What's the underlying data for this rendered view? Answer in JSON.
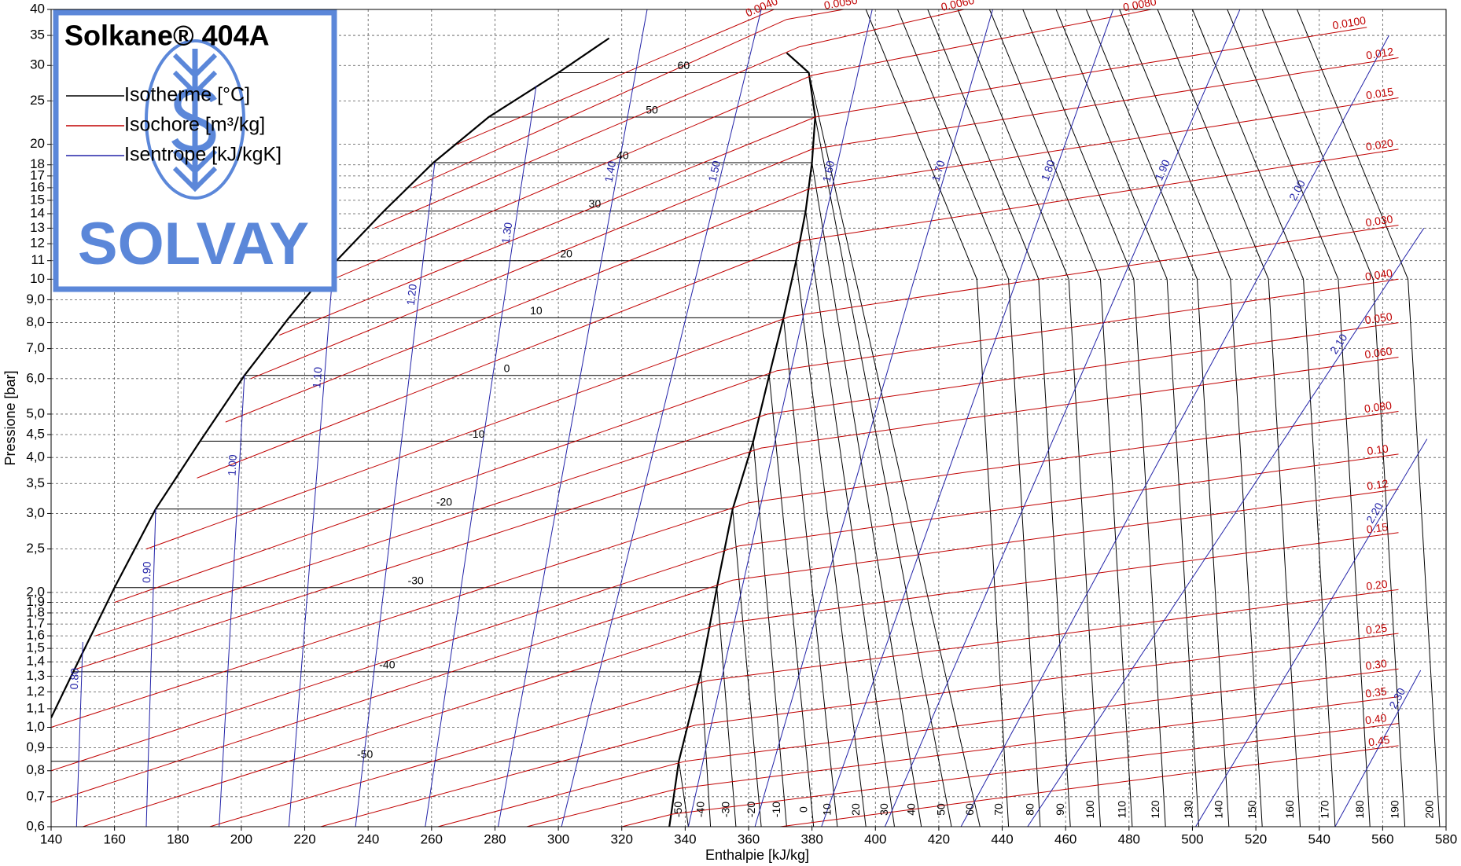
{
  "chart_data": {
    "type": "line",
    "title": "Solkane® 404A",
    "brand": "SOLVAY",
    "x_label": "Enthalpie [kJ/kg]",
    "y_label": "Pressione [bar]",
    "xlim": [
      140,
      580
    ],
    "ylim": [
      0.6,
      40
    ],
    "log_y": true,
    "grid": true,
    "xticks": [
      140,
      160,
      180,
      200,
      220,
      240,
      260,
      280,
      300,
      320,
      340,
      360,
      380,
      400,
      420,
      440,
      460,
      480,
      500,
      520,
      540,
      560,
      580
    ],
    "yticks": [
      {
        "value": 0.6,
        "label": "0,6"
      },
      {
        "value": 0.7,
        "label": "0,7"
      },
      {
        "value": 0.8,
        "label": "0,8"
      },
      {
        "value": 0.9,
        "label": "0,9"
      },
      {
        "value": 1.0,
        "label": "1,0"
      },
      {
        "value": 1.1,
        "label": "1,1"
      },
      {
        "value": 1.2,
        "label": "1,2"
      },
      {
        "value": 1.3,
        "label": "1,3"
      },
      {
        "value": 1.4,
        "label": "1,4"
      },
      {
        "value": 1.5,
        "label": "1,5"
      },
      {
        "value": 1.6,
        "label": "1,6"
      },
      {
        "value": 1.7,
        "label": "1,7"
      },
      {
        "value": 1.8,
        "label": "1,8"
      },
      {
        "value": 1.9,
        "label": "1,9"
      },
      {
        "value": 2.0,
        "label": "2,0"
      },
      {
        "value": 2.5,
        "label": "2,5"
      },
      {
        "value": 3.0,
        "label": "3,0"
      },
      {
        "value": 3.5,
        "label": "3,5"
      },
      {
        "value": 4.0,
        "label": "4,0"
      },
      {
        "value": 4.5,
        "label": "4,5"
      },
      {
        "value": 5.0,
        "label": "5,0"
      },
      {
        "value": 6.0,
        "label": "6,0"
      },
      {
        "value": 7.0,
        "label": "7,0"
      },
      {
        "value": 8.0,
        "label": "8,0"
      },
      {
        "value": 9.0,
        "label": "9,0"
      },
      10,
      11,
      12,
      13,
      14,
      15,
      16,
      17,
      18,
      20,
      25,
      30,
      35,
      40
    ],
    "saturation": {
      "color": "#000000",
      "liquid": {
        "x": [
          140,
          147,
          160,
          173,
          187,
          201,
          215,
          230,
          245,
          260.6,
          278,
          300,
          316
        ],
        "y": [
          1.05,
          1.33,
          2.05,
          3.07,
          4.35,
          6.1,
          8.2,
          11.0,
          14.2,
          18.2,
          23.0,
          28.9,
          34.5
        ]
      },
      "vapor": {
        "x": [
          335,
          338,
          345,
          350,
          355,
          361.5,
          366.5,
          371,
          375,
          378,
          380,
          381,
          379,
          372
        ],
        "y": [
          0.6,
          0.84,
          1.33,
          2.05,
          3.07,
          4.35,
          6.1,
          8.2,
          11.0,
          14.2,
          18.2,
          23.0,
          28.9,
          32
        ]
      }
    },
    "series": [
      {
        "name": "Isotherme [°C]",
        "color": "#000000",
        "lines": [
          {
            "label": "-50",
            "x": [
              140,
              338,
              341
            ],
            "y": [
              0.84,
              0.84,
              0.6
            ]
          },
          {
            "label": "-40",
            "x": [
              147,
              345,
              348
            ],
            "y": [
              1.33,
              1.33,
              0.6
            ]
          },
          {
            "label": "-30",
            "x": [
              160,
              350,
              356
            ],
            "y": [
              2.05,
              2.05,
              0.6
            ]
          },
          {
            "label": "-20",
            "x": [
              173,
              355,
              364
            ],
            "y": [
              3.07,
              3.07,
              0.6
            ]
          },
          {
            "label": "-10",
            "x": [
              187,
              361.5,
              372
            ],
            "y": [
              4.35,
              4.35,
              0.6
            ]
          },
          {
            "label": "0",
            "x": [
              201,
              366.5,
              380.5
            ],
            "y": [
              6.1,
              6.1,
              0.6
            ]
          },
          {
            "label": "10",
            "x": [
              215,
              371,
              388
            ],
            "y": [
              8.2,
              8.2,
              0.6
            ]
          },
          {
            "label": "20",
            "x": [
              230,
              375,
              397
            ],
            "y": [
              11.0,
              11.0,
              0.6
            ]
          },
          {
            "label": "30",
            "x": [
              245,
              378,
              406
            ],
            "y": [
              14.2,
              14.2,
              0.6
            ]
          },
          {
            "label": "40",
            "x": [
              260.6,
              380,
              414.5
            ],
            "y": [
              18.2,
              18.2,
              0.6
            ]
          },
          {
            "label": "50",
            "x": [
              278,
              381,
              424
            ],
            "y": [
              23.0,
              23.0,
              0.6
            ]
          },
          {
            "label": "60",
            "x": [
              300,
              379,
              433
            ],
            "y": [
              28.9,
              28.9,
              0.6
            ]
          },
          {
            "label": "70",
            "x": [
              397,
              432,
              442
            ],
            "y": [
              40,
              10,
              0.6
            ]
          },
          {
            "label": "80",
            "x": [
              407,
              442,
              452
            ],
            "y": [
              40,
              10,
              0.6
            ]
          },
          {
            "label": "90",
            "x": [
              416.5,
              451.5,
              461.5
            ],
            "y": [
              40,
              10,
              0.6
            ]
          },
          {
            "label": "100",
            "x": [
              426,
              461,
              471
            ],
            "y": [
              40,
              10,
              0.6
            ]
          },
          {
            "label": "110",
            "x": [
              436,
              471,
              481
            ],
            "y": [
              40,
              10,
              0.6
            ]
          },
          {
            "label": "120",
            "x": [
              446.5,
              481.5,
              491.5
            ],
            "y": [
              40,
              10,
              0.6
            ]
          },
          {
            "label": "130",
            "x": [
              457,
              492,
              502
            ],
            "y": [
              40,
              10,
              0.6
            ]
          },
          {
            "label": "140",
            "x": [
              466.5,
              501.5,
              511.5
            ],
            "y": [
              40,
              10,
              0.6
            ]
          },
          {
            "label": "150",
            "x": [
              477,
              512,
              522
            ],
            "y": [
              40,
              10,
              0.6
            ]
          },
          {
            "label": "160",
            "x": [
              489,
              524,
              534
            ],
            "y": [
              40,
              10,
              0.6
            ]
          },
          {
            "label": "170",
            "x": [
              500,
              535,
              545
            ],
            "y": [
              40,
              10,
              0.6
            ]
          },
          {
            "label": "180",
            "x": [
              511,
              546,
              556
            ],
            "y": [
              40,
              10,
              0.6
            ]
          },
          {
            "label": "190",
            "x": [
              522,
              557,
              567
            ],
            "y": [
              40,
              10,
              0.6
            ]
          },
          {
            "label": "200",
            "x": [
              533,
              568,
              578
            ],
            "y": [
              40,
              10,
              0.6
            ]
          }
        ]
      },
      {
        "name": "Isochore [m³/kg]",
        "color": "#c00000",
        "lines": [
          {
            "label": "0.0040",
            "x": [
              268,
              368
            ],
            "y": [
              20,
              40
            ]
          },
          {
            "label": "0.0050",
            "x": [
              254,
              372,
              390
            ],
            "y": [
              16,
              38,
              40
            ]
          },
          {
            "label": "0.0060",
            "x": [
              242,
              376,
              428
            ],
            "y": [
              13,
              33,
              40
            ]
          },
          {
            "label": "0.0080",
            "x": [
              226,
              380,
              487
            ],
            "y": [
              9.8,
              28.5,
              40
            ]
          },
          {
            "label": "0.0100",
            "x": [
              212,
              381,
              555
            ],
            "y": [
              7.5,
              23,
              36.5
            ]
          },
          {
            "label": "0.012",
            "x": [
              203,
              380,
              565
            ],
            "y": [
              6.0,
              19.5,
              31.2
            ]
          },
          {
            "label": "0.015",
            "x": [
              195,
              379,
              565
            ],
            "y": [
              4.8,
              15.9,
              25.4
            ]
          },
          {
            "label": "0.020",
            "x": [
              186,
              377,
              565
            ],
            "y": [
              3.6,
              12.2,
              19.5
            ]
          },
          {
            "label": "0.030",
            "x": [
              170,
              373,
              565
            ],
            "y": [
              2.5,
              8.25,
              13.2
            ]
          },
          {
            "label": "0.040",
            "x": [
              160,
              369,
              565
            ],
            "y": [
              1.9,
              6.25,
              10.0
            ]
          },
          {
            "label": "0.050",
            "x": [
              154,
              366,
              565
            ],
            "y": [
              1.6,
              5.0,
              8.0
            ]
          },
          {
            "label": "0.060",
            "x": [
              148,
              364,
              565
            ],
            "y": [
              1.35,
              4.2,
              6.7
            ]
          },
          {
            "label": "0.080",
            "x": [
              140,
              360,
              565
            ],
            "y": [
              1.0,
              3.17,
              5.07
            ]
          },
          {
            "label": "0.10",
            "x": [
              140,
              357,
              565
            ],
            "y": [
              0.8,
              2.54,
              4.07
            ]
          },
          {
            "label": "0.12",
            "x": [
              140,
              355,
              565
            ],
            "y": [
              0.68,
              2.13,
              3.4
            ]
          },
          {
            "label": "0.15",
            "x": [
              150,
              351,
              565
            ],
            "y": [
              0.6,
              1.7,
              2.72
            ]
          },
          {
            "label": "0.20",
            "x": [
              190,
              347,
              565
            ],
            "y": [
              0.6,
              1.27,
              2.03
            ]
          },
          {
            "label": "0.25",
            "x": [
              225,
              343,
              565
            ],
            "y": [
              0.6,
              1.01,
              1.62
            ]
          },
          {
            "label": "0.30",
            "x": [
              262,
              340,
              565
            ],
            "y": [
              0.6,
              0.84,
              1.35
            ]
          },
          {
            "label": "0.35",
            "x": [
              290,
              338,
              565
            ],
            "y": [
              0.6,
              0.73,
              1.17
            ]
          },
          {
            "label": "0.40",
            "x": [
              320,
              336,
              565
            ],
            "y": [
              0.6,
              0.64,
              1.02
            ]
          },
          {
            "label": "0.45",
            "x": [
              370,
              565
            ],
            "y": [
              0.6,
              0.91
            ]
          }
        ]
      },
      {
        "name": "Isentrope [kJ/kgK]",
        "color": "#2323a8",
        "lines": [
          {
            "label": "0.80",
            "x": [
              148,
              150
            ],
            "y": [
              0.6,
              1.55
            ]
          },
          {
            "label": "0.90",
            "x": [
              170,
              173
            ],
            "y": [
              0.6,
              3.07
            ]
          },
          {
            "label": "1.00",
            "x": [
              193,
              201
            ],
            "y": [
              0.6,
              6.1
            ]
          },
          {
            "label": "1.10",
            "x": [
              215,
              229
            ],
            "y": [
              0.6,
              10.7
            ]
          },
          {
            "label": "1.20",
            "x": [
              236,
              261
            ],
            "y": [
              0.6,
              18.2
            ]
          },
          {
            "label": "1.30",
            "x": [
              258,
              293
            ],
            "y": [
              0.6,
              27
            ]
          },
          {
            "label": "1.40",
            "x": [
              281,
              328
            ],
            "y": [
              0.6,
              40
            ]
          },
          {
            "label": "1.50",
            "x": [
              301,
              364
            ],
            "y": [
              0.6,
              40
            ]
          },
          {
            "label": "1.60",
            "x": [
              341,
              399
            ],
            "y": [
              0.6,
              40
            ]
          },
          {
            "label": "1.70",
            "x": [
              362,
              437
            ],
            "y": [
              0.6,
              40
            ]
          },
          {
            "label": "1.80",
            "x": [
              383,
              475
            ],
            "y": [
              0.6,
              40
            ]
          },
          {
            "label": "1.90",
            "x": [
              403,
              515
            ],
            "y": [
              0.6,
              40
            ]
          },
          {
            "label": "2.00",
            "x": [
              427,
              562
            ],
            "y": [
              0.6,
              35
            ]
          },
          {
            "label": "2.10",
            "x": [
              448,
              573
            ],
            "y": [
              0.6,
              13
            ]
          },
          {
            "label": "2.20",
            "x": [
              501,
              574
            ],
            "y": [
              0.6,
              4.4
            ]
          },
          {
            "label": "2.30",
            "x": [
              545,
              572
            ],
            "y": [
              0.6,
              1.34
            ]
          }
        ]
      }
    ]
  }
}
